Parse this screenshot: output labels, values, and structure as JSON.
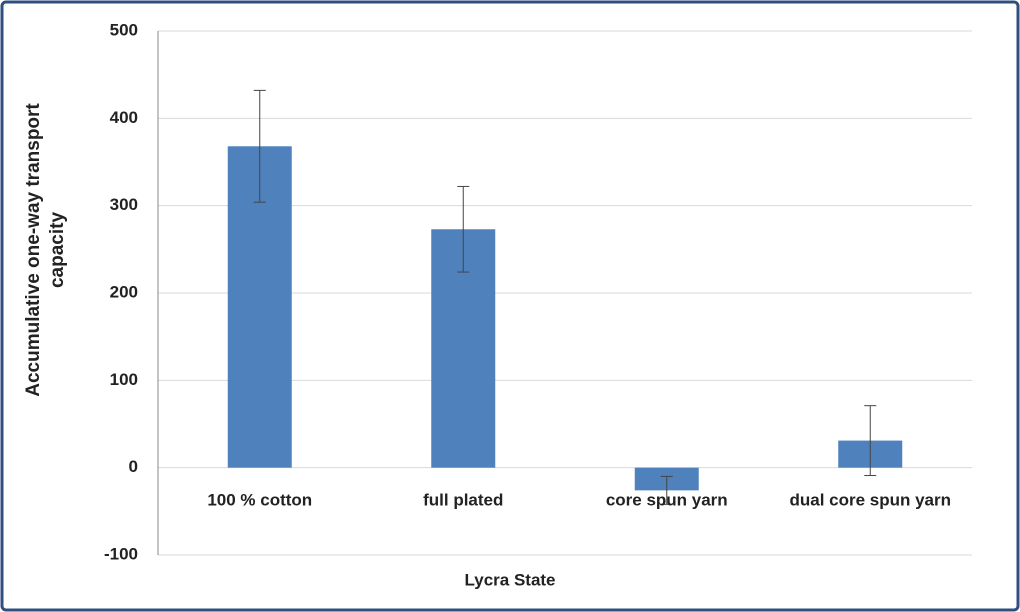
{
  "chart_data": {
    "type": "bar",
    "x_label": "Lycra State",
    "y_label": [
      "Accumulative  one-way transport",
      "capacity"
    ],
    "categories": [
      "100 % cotton",
      "full plated",
      "core spun yarn",
      "dual core spun yarn"
    ],
    "values": [
      368,
      273,
      -26,
      31
    ],
    "errors": [
      64,
      49,
      16,
      40
    ],
    "color": "#4f81bd",
    "ylim": [
      -100,
      500
    ],
    "yticks": [
      -100,
      0,
      100,
      200,
      300,
      400,
      500
    ],
    "grid": true
  }
}
